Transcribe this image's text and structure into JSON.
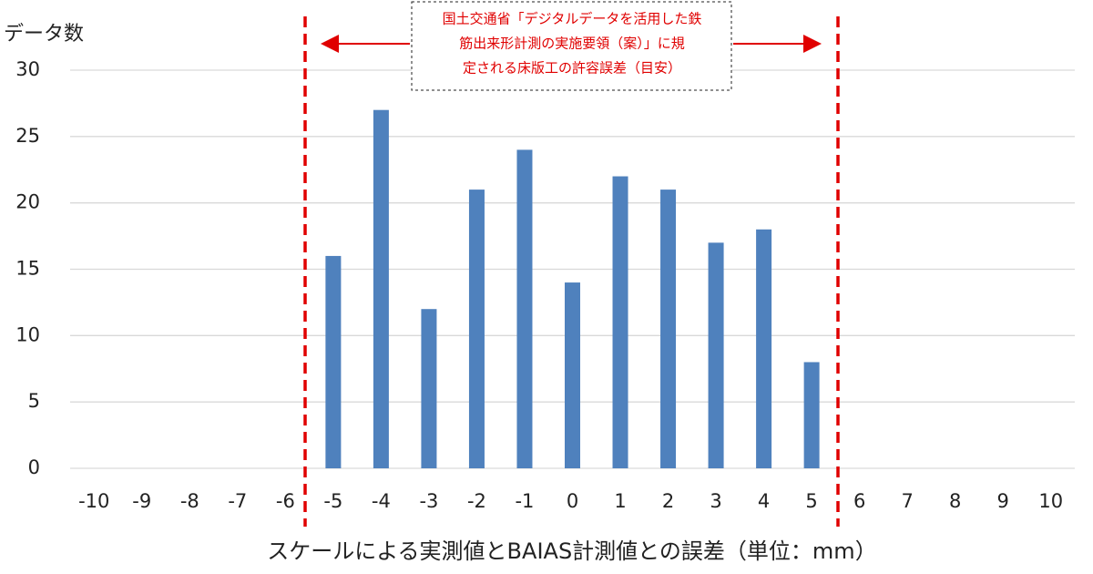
{
  "chart_data": {
    "type": "bar",
    "y_label": "データ数",
    "x_label": "スケールによる実測値とBAIAS計測値との誤差（単位：mm）",
    "annotation": [
      "国土交通省「デジタルデータを活用した鉄",
      "筋出来形計測の実施要領（案）」に規",
      "定される床版工の許容誤差（目安）"
    ],
    "categories": [
      "-10",
      "-9",
      "-8",
      "-7",
      "-6",
      "-5",
      "-4",
      "-3",
      "-2",
      "-1",
      "0",
      "1",
      "2",
      "3",
      "4",
      "5",
      "6",
      "7",
      "8",
      "9",
      "10"
    ],
    "values": [
      0,
      0,
      0,
      0,
      0,
      16,
      27,
      12,
      21,
      24,
      14,
      22,
      21,
      17,
      18,
      8,
      0,
      0,
      0,
      0,
      0
    ],
    "color": "#4f81bd",
    "ylim": [
      0,
      30
    ],
    "yticks": [
      0,
      5,
      10,
      15,
      20,
      25,
      30
    ],
    "grid": true
  }
}
